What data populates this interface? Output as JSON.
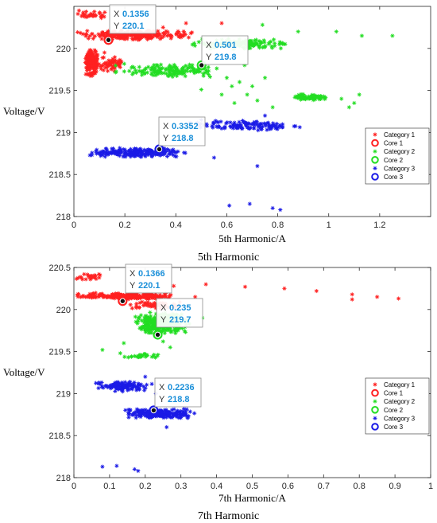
{
  "colors": {
    "category_1": "#ff2020",
    "category_2": "#22dd22",
    "category_3": "#1a1ae6",
    "datatip_value": "#1a8fd9",
    "axis": "#262626"
  },
  "chart_data": [
    {
      "type": "scatter",
      "caption": "5th Harmonic",
      "xlabel": "5th Harmonic/A",
      "ylabel": "Voltage/V",
      "xlim": [
        0,
        1.4
      ],
      "ylim": [
        218,
        220.5
      ],
      "xticks": [
        "0",
        "0.2",
        "0.4",
        "0.6",
        "0.8",
        "1",
        "1.2"
      ],
      "yticks": [
        "218",
        "218.5",
        "219",
        "219.5",
        "220"
      ],
      "legend": {
        "position": "right",
        "entries": [
          "Category 1",
          "Core 1",
          "Category 2",
          "Core 2",
          "Category 3",
          "Core 3"
        ]
      },
      "series": [
        {
          "name": "Category 1",
          "marker": "asterisk",
          "color": "category_1",
          "clusters": [
            {
              "x": [
                0.04,
                0.1
              ],
              "y": [
                219.65,
                220.0
              ],
              "count": 160
            },
            {
              "x": [
                0.1,
                0.2
              ],
              "y": [
                219.72,
                219.92
              ],
              "count": 60
            },
            {
              "x": [
                0.0,
                0.48
              ],
              "y": [
                220.1,
                220.22
              ],
              "count": 240
            },
            {
              "x": [
                0.0,
                0.14
              ],
              "y": [
                220.35,
                220.45
              ],
              "count": 30
            }
          ],
          "points": [
            {
              "x": 0.44,
              "y": 220.3
            },
            {
              "x": 0.58,
              "y": 220.3
            },
            {
              "x": 0.35,
              "y": 220.25
            },
            {
              "x": 0.12,
              "y": 219.95
            },
            {
              "x": 0.02,
              "y": 220.45
            }
          ]
        },
        {
          "name": "Category 2",
          "marker": "asterisk",
          "color": "category_2",
          "clusters": [
            {
              "x": [
                0.15,
                0.58
              ],
              "y": [
                219.65,
                219.82
              ],
              "count": 150
            },
            {
              "x": [
                0.45,
                0.85
              ],
              "y": [
                219.98,
                220.12
              ],
              "count": 140
            },
            {
              "x": [
                0.85,
                1.0
              ],
              "y": [
                219.38,
                219.46
              ],
              "count": 70
            }
          ],
          "points": [
            {
              "x": 0.5,
              "y": 219.51
            },
            {
              "x": 0.6,
              "y": 219.65
            },
            {
              "x": 0.62,
              "y": 219.55
            },
            {
              "x": 0.65,
              "y": 219.6
            },
            {
              "x": 0.68,
              "y": 219.45
            },
            {
              "x": 0.7,
              "y": 219.55
            },
            {
              "x": 0.72,
              "y": 219.38
            },
            {
              "x": 0.63,
              "y": 219.35
            },
            {
              "x": 0.58,
              "y": 219.45
            },
            {
              "x": 0.75,
              "y": 219.65
            },
            {
              "x": 0.67,
              "y": 219.8
            },
            {
              "x": 0.78,
              "y": 219.3
            },
            {
              "x": 0.88,
              "y": 220.2
            },
            {
              "x": 1.03,
              "y": 220.2
            },
            {
              "x": 1.05,
              "y": 219.4
            },
            {
              "x": 1.08,
              "y": 219.3
            },
            {
              "x": 1.1,
              "y": 219.35
            },
            {
              "x": 1.13,
              "y": 220.15
            },
            {
              "x": 1.25,
              "y": 220.15
            },
            {
              "x": 1.12,
              "y": 219.45
            },
            {
              "x": 0.74,
              "y": 220.28
            }
          ]
        },
        {
          "name": "Category 3",
          "marker": "asterisk",
          "color": "category_3",
          "clusters": [
            {
              "x": [
                0.05,
                0.45
              ],
              "y": [
                218.7,
                218.82
              ],
              "count": 200
            },
            {
              "x": [
                0.45,
                0.9
              ],
              "y": [
                219.02,
                219.15
              ],
              "count": 120
            }
          ],
          "points": [
            {
              "x": 0.5,
              "y": 219.15
            },
            {
              "x": 0.55,
              "y": 218.7
            },
            {
              "x": 0.72,
              "y": 218.6
            },
            {
              "x": 0.61,
              "y": 218.13
            },
            {
              "x": 0.69,
              "y": 218.15
            },
            {
              "x": 0.78,
              "y": 218.1
            },
            {
              "x": 0.81,
              "y": 218.08
            },
            {
              "x": 0.75,
              "y": 219.2
            }
          ]
        },
        {
          "name": "Core 1",
          "marker": "circle",
          "color": "category_1",
          "x": 0.1356,
          "y": 220.1
        },
        {
          "name": "Core 2",
          "marker": "circle",
          "color": "category_2",
          "x": 0.501,
          "y": 219.8
        },
        {
          "name": "Core 3",
          "marker": "circle",
          "color": "category_3",
          "x": 0.3352,
          "y": 218.8
        }
      ],
      "datatips": [
        {
          "x_label": "X",
          "x_value": "0.1356",
          "y_label": "Y",
          "y_value": "220.1",
          "x": 0.1356,
          "y": 220.1
        },
        {
          "x_label": "X",
          "x_value": "0.501",
          "y_label": "Y",
          "y_value": "219.8",
          "x": 0.501,
          "y": 219.8
        },
        {
          "x_label": "X",
          "x_value": "0.3352",
          "y_label": "Y",
          "y_value": "218.8",
          "x": 0.3352,
          "y": 218.8
        }
      ]
    },
    {
      "type": "scatter",
      "caption": "7th Harmonic",
      "xlabel": "7th Harmonic/A",
      "ylabel": "Voltage/V",
      "xlim": [
        0,
        1
      ],
      "ylim": [
        218,
        220.5
      ],
      "xticks": [
        "0",
        "0.1",
        "0.2",
        "0.3",
        "0.4",
        "0.5",
        "0.6",
        "0.7",
        "0.8",
        "0.9",
        "1"
      ],
      "yticks": [
        "218",
        "218.5",
        "219",
        "219.5",
        "220",
        "220.5"
      ],
      "legend": {
        "position": "right",
        "entries": [
          "Category 1",
          "Core 1",
          "Category 2",
          "Core 2",
          "Category 3",
          "Core 3"
        ]
      },
      "series": [
        {
          "name": "Category 1",
          "marker": "asterisk",
          "color": "category_1",
          "clusters": [
            {
              "x": [
                0.0,
                0.3
              ],
              "y": [
                220.12,
                220.2
              ],
              "count": 240
            },
            {
              "x": [
                0.15,
                0.3
              ],
              "y": [
                220.0,
                220.1
              ],
              "count": 60
            },
            {
              "x": [
                0.0,
                0.09
              ],
              "y": [
                220.35,
                220.43
              ],
              "count": 25
            }
          ],
          "points": [
            {
              "x": 0.37,
              "y": 220.3
            },
            {
              "x": 0.48,
              "y": 220.27
            },
            {
              "x": 0.59,
              "y": 220.25
            },
            {
              "x": 0.68,
              "y": 220.22
            },
            {
              "x": 0.78,
              "y": 220.18
            },
            {
              "x": 0.78,
              "y": 220.12
            },
            {
              "x": 0.85,
              "y": 220.15
            },
            {
              "x": 0.91,
              "y": 220.13
            },
            {
              "x": 0.34,
              "y": 220.15
            },
            {
              "x": 0.28,
              "y": 220.28
            }
          ]
        },
        {
          "name": "Category 2",
          "marker": "asterisk",
          "color": "category_2",
          "clusters": [
            {
              "x": [
                0.16,
                0.33
              ],
              "y": [
                219.7,
                219.98
              ],
              "count": 280
            },
            {
              "x": [
                0.14,
                0.26
              ],
              "y": [
                219.42,
                219.48
              ],
              "count": 30
            }
          ],
          "points": [
            {
              "x": 0.08,
              "y": 219.52
            },
            {
              "x": 0.14,
              "y": 219.6
            },
            {
              "x": 0.36,
              "y": 219.9
            },
            {
              "x": 0.13,
              "y": 219.48
            },
            {
              "x": 0.25,
              "y": 219.62
            },
            {
              "x": 0.27,
              "y": 219.55
            }
          ]
        },
        {
          "name": "Category 3",
          "marker": "asterisk",
          "color": "category_3",
          "clusters": [
            {
              "x": [
                0.04,
                0.22
              ],
              "y": [
                219.02,
                219.15
              ],
              "count": 120
            },
            {
              "x": [
                0.14,
                0.34
              ],
              "y": [
                218.7,
                218.82
              ],
              "count": 200
            }
          ],
          "points": [
            {
              "x": 0.08,
              "y": 218.13
            },
            {
              "x": 0.12,
              "y": 218.14
            },
            {
              "x": 0.17,
              "y": 218.1
            },
            {
              "x": 0.18,
              "y": 218.08
            },
            {
              "x": 0.2,
              "y": 219.2
            },
            {
              "x": 0.26,
              "y": 218.6
            },
            {
              "x": 0.23,
              "y": 219.0
            }
          ]
        },
        {
          "name": "Core 1",
          "marker": "circle",
          "color": "category_1",
          "x": 0.1366,
          "y": 220.1
        },
        {
          "name": "Core 2",
          "marker": "circle",
          "color": "category_2",
          "x": 0.235,
          "y": 219.7
        },
        {
          "name": "Core 3",
          "marker": "circle",
          "color": "category_3",
          "x": 0.2236,
          "y": 218.8
        }
      ],
      "datatips": [
        {
          "x_label": "X",
          "x_value": "0.1366",
          "y_label": "Y",
          "y_value": "220.1",
          "x": 0.1366,
          "y": 220.1
        },
        {
          "x_label": "X",
          "x_value": "0.235",
          "y_label": "Y",
          "y_value": "219.7",
          "x": 0.235,
          "y": 219.7
        },
        {
          "x_label": "X",
          "x_value": "0.2236",
          "y_label": "Y",
          "y_value": "218.8",
          "x": 0.2236,
          "y": 218.8
        }
      ]
    }
  ]
}
